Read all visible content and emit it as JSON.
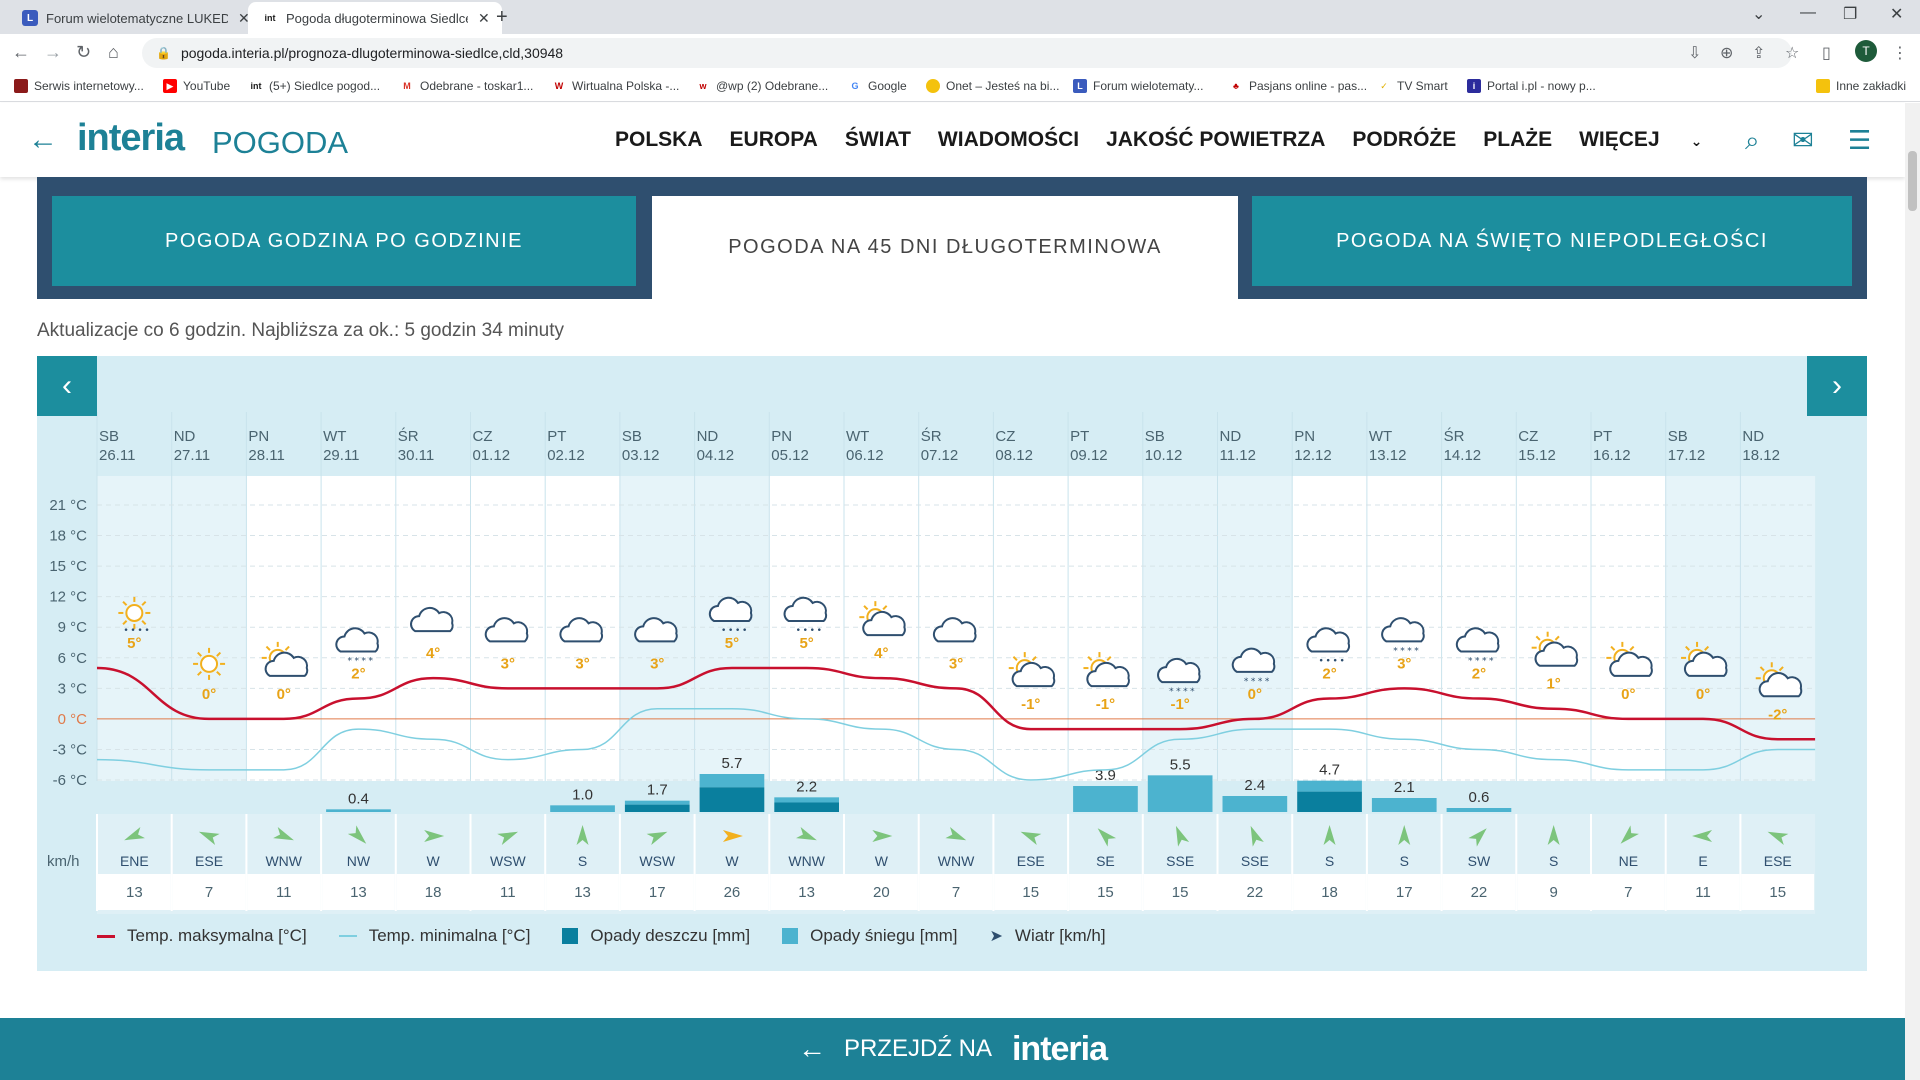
{
  "browser": {
    "tabs": [
      {
        "label": "Forum wielotematyczne LUKEDIF",
        "icon": "forum-l-icon",
        "active": false
      },
      {
        "label": "Pogoda długoterminowa Siedlce",
        "icon": "interia-int-icon",
        "active": true
      }
    ],
    "url": "pogoda.interia.pl/prognoza-dlugoterminowa-siedlce,cld,30948",
    "profile_initial": "T",
    "bookmarks": [
      {
        "label": "Serwis internetowy...",
        "color": "#8b1a1a"
      },
      {
        "label": "YouTube",
        "color": "#ff0000"
      },
      {
        "label": "(5+) Siedlce pogod...",
        "color": "#1a1a1a"
      },
      {
        "label": "Odebrane - toskar1...",
        "color": "#d93025"
      },
      {
        "label": "Wirtualna Polska -...",
        "color": "#c00000"
      },
      {
        "label": "@wp (2) Odebrane...",
        "color": "#c00000"
      },
      {
        "label": "Google",
        "color": "#4285f4"
      },
      {
        "label": "Onet – Jesteś na bi...",
        "color": "#f4c20d"
      },
      {
        "label": "Forum wielotematy...",
        "color": "#3b5bbd"
      },
      {
        "label": "Pasjans online - pas...",
        "color": "#c00000"
      },
      {
        "label": "TV Smart",
        "color": "#f4c20d"
      },
      {
        "label": "Portal i.pl - nowy p...",
        "color": "#2c2c9c"
      }
    ],
    "other_bookmarks": "Inne zakładki"
  },
  "header": {
    "logo": "interia",
    "logo_suffix": "POGODA",
    "nav": [
      "POLSKA",
      "EUROPA",
      "ŚWIAT",
      "WIADOMOŚCI",
      "JAKOŚĆ POWIETRZA",
      "PODRÓŻE",
      "PLAŻE",
      "WIĘCEJ"
    ]
  },
  "forecast_tabs": [
    {
      "label": "POGODA GODZINA PO GODZINIE",
      "active": false
    },
    {
      "label": "POGODA NA 45 DNI DŁUGOTERMINOWA",
      "active": true
    },
    {
      "label": "POGODA NA ŚWIĘTO NIEPODLEGŁOŚCI",
      "active": false
    }
  ],
  "update_text": "Aktualizacje co 6 godzin. Najbliższa za ok.: 5 godzin 34 minuty",
  "chart_data": {
    "type": "line",
    "days": [
      {
        "dow": "SB",
        "date": "26.11",
        "max": 5,
        "min": -4,
        "icon": "sun-rain-icon",
        "precip": null,
        "precip_type": null,
        "wind_dir": "ENE",
        "wind": 13
      },
      {
        "dow": "ND",
        "date": "27.11",
        "max": 0,
        "min": -5,
        "icon": "sun-icon",
        "precip": null,
        "precip_type": null,
        "wind_dir": "ESE",
        "wind": 7
      },
      {
        "dow": "PN",
        "date": "28.11",
        "max": 0,
        "min": -5,
        "icon": "sun-cloud-icon",
        "precip": null,
        "precip_type": null,
        "wind_dir": "WNW",
        "wind": 11
      },
      {
        "dow": "WT",
        "date": "29.11",
        "max": 2,
        "min": -1,
        "icon": "cloud-snow-icon",
        "precip": 0.4,
        "precip_type": "snow",
        "wind_dir": "NW",
        "wind": 13
      },
      {
        "dow": "ŚR",
        "date": "30.11",
        "max": 4,
        "min": -2,
        "icon": "cloud-icon",
        "precip": null,
        "precip_type": null,
        "wind_dir": "W",
        "wind": 18
      },
      {
        "dow": "CZ",
        "date": "01.12",
        "max": 3,
        "min": -4,
        "icon": "cloud-icon",
        "precip": null,
        "precip_type": null,
        "wind_dir": "WSW",
        "wind": 11
      },
      {
        "dow": "PT",
        "date": "02.12",
        "max": 3,
        "min": -3,
        "icon": "cloud-icon",
        "precip": 1.0,
        "precip_type": "snow",
        "wind_dir": "S",
        "wind": 13
      },
      {
        "dow": "SB",
        "date": "03.12",
        "max": 3,
        "min": 1,
        "icon": "cloud-icon",
        "precip": 1.7,
        "precip_type": "mixed",
        "wind_dir": "WSW",
        "wind": 17
      },
      {
        "dow": "ND",
        "date": "04.12",
        "max": 5,
        "min": 1,
        "icon": "cloud-sleet-icon",
        "precip": 5.7,
        "precip_type": "mixed",
        "wind_dir": "W",
        "wind": 26
      },
      {
        "dow": "PN",
        "date": "05.12",
        "max": 5,
        "min": 0,
        "icon": "cloud-rain-icon",
        "precip": 2.2,
        "precip_type": "mixed",
        "wind_dir": "WNW",
        "wind": 13
      },
      {
        "dow": "WT",
        "date": "06.12",
        "max": 4,
        "min": -1,
        "icon": "sun-cloud-icon",
        "precip": null,
        "precip_type": null,
        "wind_dir": "W",
        "wind": 20
      },
      {
        "dow": "ŚR",
        "date": "07.12",
        "max": 3,
        "min": -3,
        "icon": "cloud-icon",
        "precip": null,
        "precip_type": null,
        "wind_dir": "WNW",
        "wind": 7
      },
      {
        "dow": "CZ",
        "date": "08.12",
        "max": -1,
        "min": -6,
        "icon": "sun-cloud-icon",
        "precip": null,
        "precip_type": null,
        "wind_dir": "ESE",
        "wind": 15
      },
      {
        "dow": "PT",
        "date": "09.12",
        "max": -1,
        "min": -5,
        "icon": "sun-cloud-icon",
        "precip": 3.9,
        "precip_type": "snow",
        "wind_dir": "SE",
        "wind": 15
      },
      {
        "dow": "SB",
        "date": "10.12",
        "max": -1,
        "min": -2,
        "icon": "cloud-snow-icon",
        "precip": 5.5,
        "precip_type": "snow",
        "wind_dir": "SSE",
        "wind": 15
      },
      {
        "dow": "ND",
        "date": "11.12",
        "max": 0,
        "min": -1,
        "icon": "cloud-heavy-snow-icon",
        "precip": 2.4,
        "precip_type": "snow",
        "wind_dir": "SSE",
        "wind": 22
      },
      {
        "dow": "PN",
        "date": "12.12",
        "max": 2,
        "min": -1,
        "icon": "cloud-sleet-icon",
        "precip": 4.7,
        "precip_type": "mixed",
        "wind_dir": "S",
        "wind": 18
      },
      {
        "dow": "WT",
        "date": "13.12",
        "max": 3,
        "min": -2,
        "icon": "cloud-snow-icon",
        "precip": 2.1,
        "precip_type": "snow",
        "wind_dir": "S",
        "wind": 17
      },
      {
        "dow": "ŚR",
        "date": "14.12",
        "max": 2,
        "min": -3,
        "icon": "cloud-snow-icon",
        "precip": 0.6,
        "precip_type": "snow",
        "wind_dir": "SW",
        "wind": 22
      },
      {
        "dow": "CZ",
        "date": "15.12",
        "max": 1,
        "min": -4,
        "icon": "sun-cloud-icon",
        "precip": null,
        "precip_type": null,
        "wind_dir": "S",
        "wind": 9
      },
      {
        "dow": "PT",
        "date": "16.12",
        "max": 0,
        "min": -5,
        "icon": "sun-cloud-icon",
        "precip": null,
        "precip_type": null,
        "wind_dir": "NE",
        "wind": 7
      },
      {
        "dow": "SB",
        "date": "17.12",
        "max": 0,
        "min": -5,
        "icon": "sun-cloud-icon",
        "precip": null,
        "precip_type": null,
        "wind_dir": "E",
        "wind": 11
      },
      {
        "dow": "ND",
        "date": "18.12",
        "max": -2,
        "min": -3,
        "icon": "sun-cloud-icon",
        "precip": null,
        "precip_type": null,
        "wind_dir": "ESE",
        "wind": 15
      }
    ],
    "y_ticks": [
      "21 °C",
      "18 °C",
      "15 °C",
      "12 °C",
      "9 °C",
      "6 °C",
      "3 °C",
      "0 °C",
      "-3 °C",
      "-6 °C"
    ],
    "ylim": [
      -6,
      21
    ],
    "precip_max": 6,
    "wind_unit": "km/h",
    "colors": {
      "max": "#c8102e",
      "min": "#7fcfe0",
      "rain": "#0a7f9e",
      "snow": "#4cb3cf",
      "zero": "#e07a4a",
      "temp_label": "#e8a317"
    },
    "legend": [
      {
        "label": "Temp. maksymalna [°C]",
        "kind": "max"
      },
      {
        "label": "Temp. minimalna [°C]",
        "kind": "min"
      },
      {
        "label": "Opady deszczu [mm]",
        "kind": "rain"
      },
      {
        "label": "Opady śniegu [mm]",
        "kind": "snow"
      },
      {
        "label": "Wiatr [km/h]",
        "kind": "wind"
      }
    ]
  },
  "bottom_bar": {
    "text": "PRZEJDŹ NA",
    "logo": "interia"
  }
}
